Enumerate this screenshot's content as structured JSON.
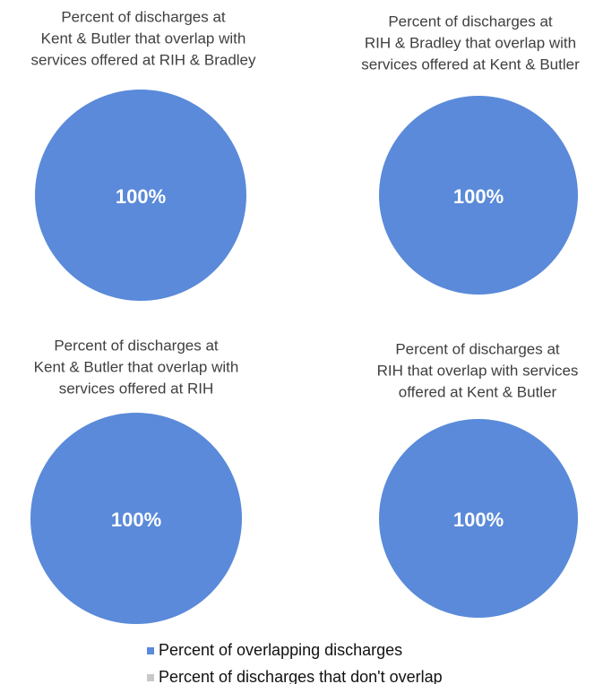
{
  "chart_data": [
    {
      "type": "pie",
      "title": [
        "Percent of discharges at",
        "Kent & Butler that overlap with",
        "services offered at RIH & Bradley"
      ],
      "categories": [
        "Percent of overlapping discharges",
        "Percent of discharges that don't overlap"
      ],
      "values": [
        100,
        0
      ],
      "value_labels": [
        "100%",
        null
      ],
      "colors": [
        "#5a8ad9",
        "#c8c8c8"
      ]
    },
    {
      "type": "pie",
      "title": [
        "Percent of discharges at",
        "RIH & Bradley that overlap with",
        "services offered at Kent & Butler"
      ],
      "categories": [
        "Percent of overlapping discharges",
        "Percent of discharges that don't overlap"
      ],
      "values": [
        100,
        0
      ],
      "value_labels": [
        "100%",
        null
      ],
      "colors": [
        "#5a8ad9",
        "#c8c8c8"
      ]
    },
    {
      "type": "pie",
      "title": [
        "Percent of discharges at",
        "Kent & Butler that overlap with",
        "services offered at RIH"
      ],
      "categories": [
        "Percent of overlapping discharges",
        "Percent of discharges that don't overlap"
      ],
      "values": [
        100,
        0
      ],
      "value_labels": [
        "100%",
        null
      ],
      "colors": [
        "#5a8ad9",
        "#c8c8c8"
      ]
    },
    {
      "type": "pie",
      "title": [
        "Percent of discharges at",
        "RIH that overlap with services",
        "offered at Kent & Butler"
      ],
      "categories": [
        "Percent of overlapping discharges",
        "Percent of discharges that don't overlap"
      ],
      "values": [
        100,
        0
      ],
      "value_labels": [
        "100%",
        null
      ],
      "colors": [
        "#5a8ad9",
        "#c8c8c8"
      ]
    }
  ]
}
